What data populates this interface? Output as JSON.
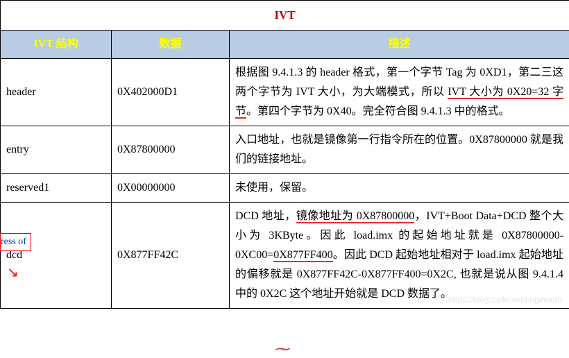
{
  "table": {
    "title": "IVT",
    "headers": {
      "col1": "IVT 结构",
      "col2": "数据",
      "col3": "描述"
    },
    "rows": [
      {
        "name": "header",
        "data": "0X402000D1",
        "desc_pre": "根据图 9.4.1.3 的 header 格式，第一个字节 Tag 为 0XD1，第二三这两个字节为 IVT 大小，为大端模式，所以 ",
        "desc_ul1": "IVT 大小为 0X20=32 字节",
        "desc_post": "。第四个字节为 0X40。完全符合图 9.4.1.3 中的格式。"
      },
      {
        "name": "entry",
        "data": "0X87800000",
        "desc": "入口地址，也就是镜像第一行指令所在的位置。0X87800000 就是我们的链接地址。"
      },
      {
        "name": "reserved1",
        "data": "0X00000000",
        "desc": "未使用，保留。"
      },
      {
        "name": "dcd",
        "data": "0X877FF42C",
        "desc_p1": "DCD 地址，",
        "desc_ul_a": "镜像地址为 0X87800000",
        "desc_p2": "，IVT+Boot Data+DCD 整个大小为 3KByte。因此 load.imx 的起始地址就是 0X87800000-0XC00=",
        "desc_ul_b": "0X877FF400",
        "desc_p3": "。因此 DCD 起始地址相对于 load.imx 起始地址的偏移就是 0X877FF42C-0X877FF400=0X2C, 也就是说从图 9.4.1.4 中的 0X2C 这个地址开始就是 DCD 数据了。"
      }
    ]
  },
  "annot": "ress of",
  "watermark": "https://blog.csdn.net/engineer0",
  "colors": {
    "title": "#c00000",
    "header_bg": "#b8cce4",
    "header_text": "#ffff00",
    "underline": "#e03030",
    "annot_border": "#ff0000",
    "annot_text": "#0033cc"
  }
}
